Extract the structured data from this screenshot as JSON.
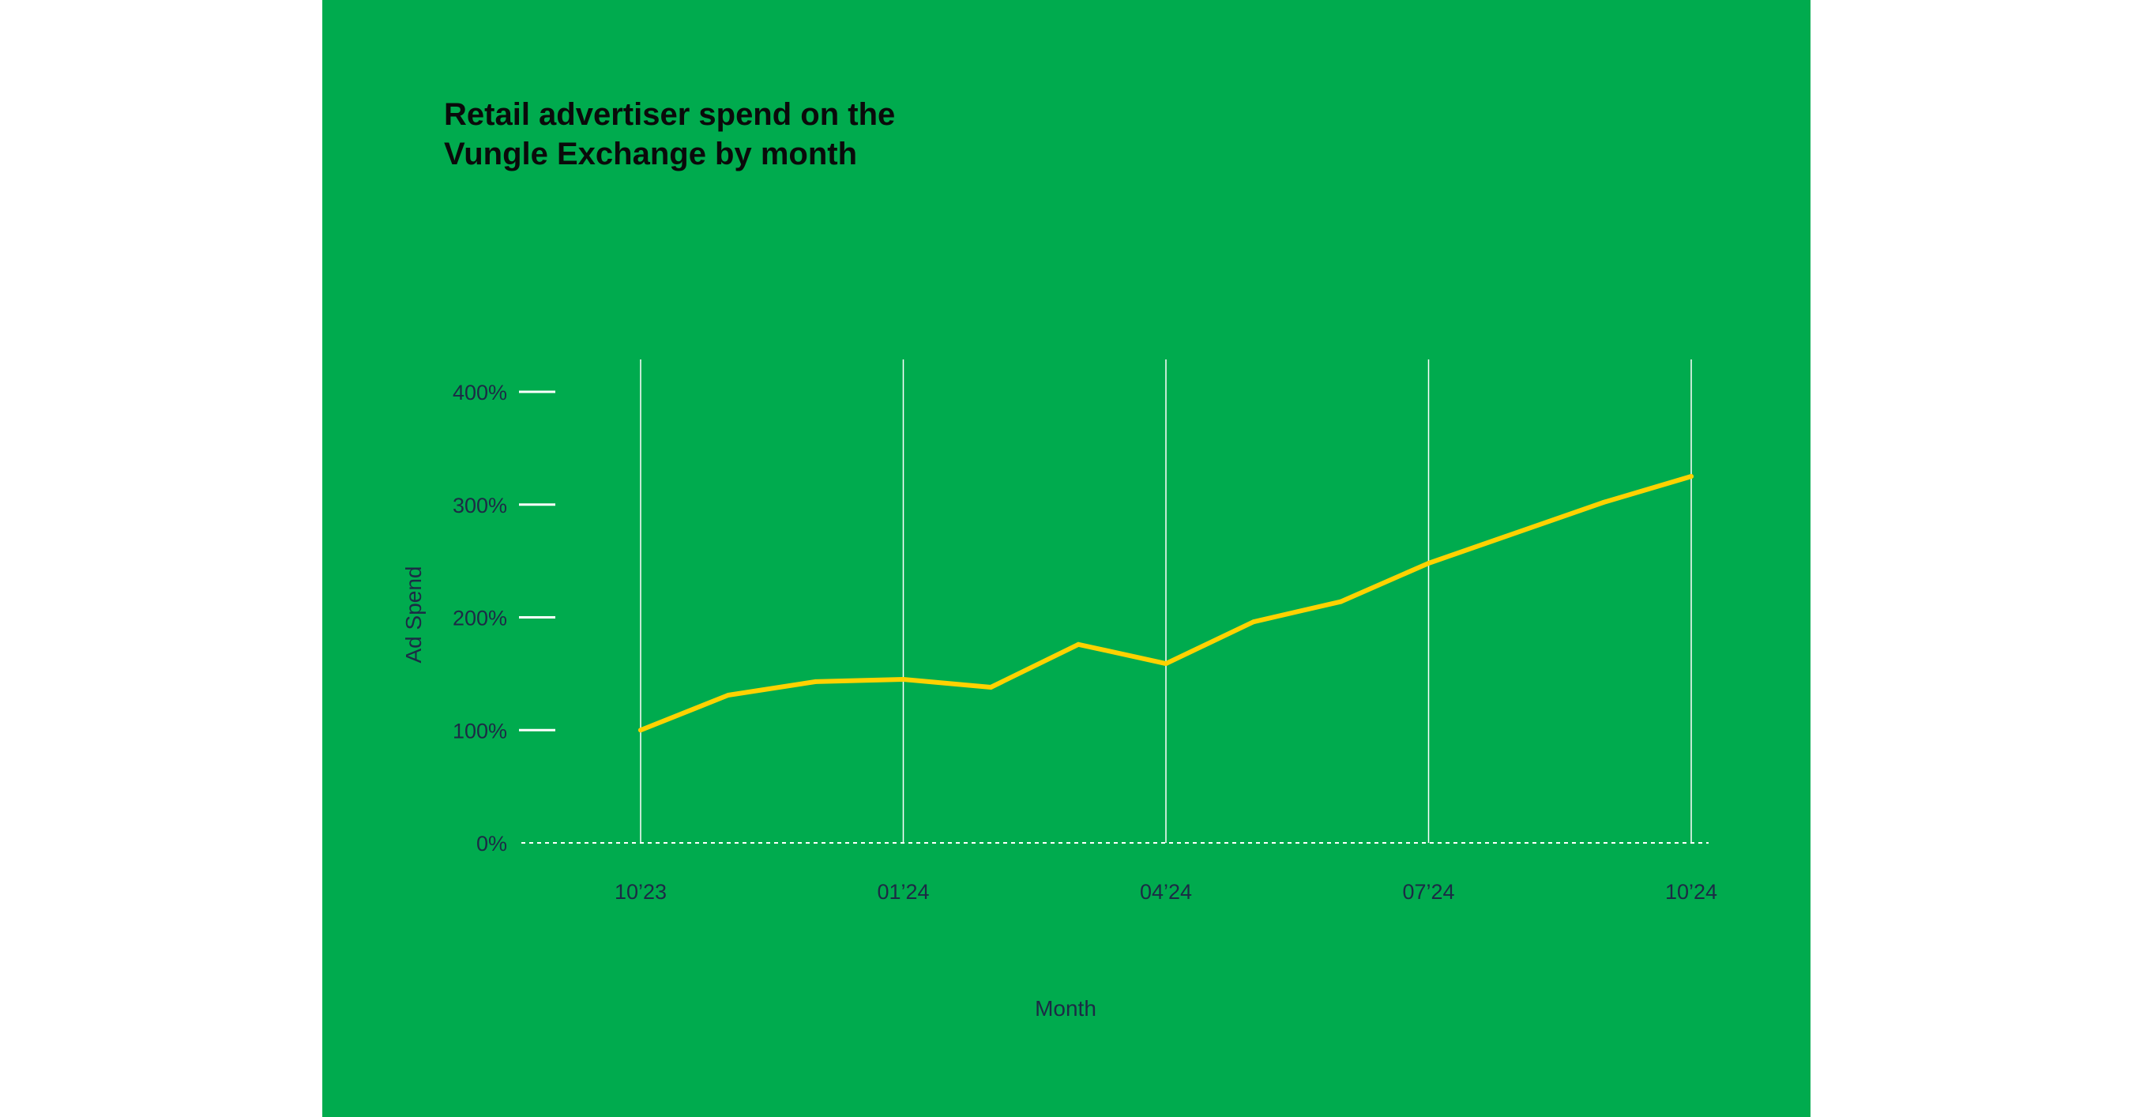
{
  "chart_data": {
    "type": "line",
    "title": "Retail advertiser spend on the Vungle Exchange by month",
    "title_lines": [
      "Retail advertiser spend on the",
      "Vungle Exchange by month"
    ],
    "xlabel": "Month",
    "ylabel": "Ad Spend",
    "x": [
      "10'23",
      "11'23",
      "12'23",
      "01'24",
      "02'24",
      "03'24",
      "04'24",
      "05'24",
      "06'24",
      "07'24",
      "08'24",
      "09'24",
      "10'24"
    ],
    "x_tick_labels": [
      "10’23",
      "01’24",
      "04’24",
      "07’24",
      "10’24"
    ],
    "x_tick_index": [
      0,
      3,
      6,
      9,
      12
    ],
    "y_tick_labels": [
      "0%",
      "100%",
      "200%",
      "300%",
      "400%"
    ],
    "y_ticks": [
      0,
      100,
      200,
      300,
      400
    ],
    "ylim": [
      0,
      400
    ],
    "series": [
      {
        "values": [
          100,
          131,
          143,
          145,
          138,
          176,
          159,
          196,
          214,
          248,
          275,
          302,
          325
        ],
        "color": "#FFD200"
      }
    ],
    "grid": "vertical lines at labeled months",
    "colors": {
      "background": "#00AB4E",
      "line": "#FFD200",
      "text": "#1C2A45",
      "grid": "#FFFFFF"
    }
  }
}
